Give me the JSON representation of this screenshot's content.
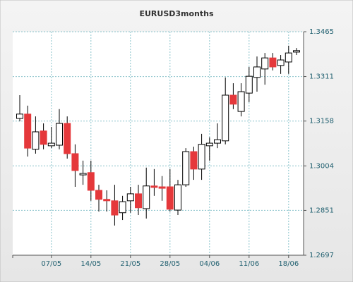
{
  "chart_data": {
    "type": "candlestick",
    "title": "EURUSD3months",
    "categories": [
      null,
      null,
      null,
      null,
      "07/05",
      null,
      null,
      null,
      null,
      "14/05",
      null,
      null,
      null,
      null,
      "21/05",
      null,
      null,
      null,
      null,
      "28/05",
      null,
      null,
      null,
      null,
      "04/06",
      null,
      null,
      null,
      null,
      "11/06",
      null,
      null,
      null,
      null,
      "18/06",
      null
    ],
    "open": [
      1.3167,
      1.3182,
      1.3061,
      1.3124,
      1.3073,
      1.3075,
      1.315,
      1.3046,
      1.2973,
      1.2981,
      1.292,
      1.2889,
      1.2884,
      1.2843,
      1.2884,
      1.2908,
      1.2857,
      1.2935,
      1.2932,
      1.2932,
      1.2852,
      1.2939,
      1.3053,
      1.2993,
      1.3073,
      1.3082,
      1.309,
      1.3247,
      1.3191,
      1.3254,
      1.3308,
      1.3337,
      1.3375,
      1.3349,
      1.3361,
      1.3395
    ],
    "high": [
      1.3247,
      1.3211,
      1.3174,
      1.315,
      1.3138,
      1.3199,
      1.3174,
      1.3078,
      1.3022,
      1.3022,
      1.2939,
      1.292,
      1.2939,
      1.2901,
      1.2932,
      1.2939,
      1.2998,
      1.2993,
      1.2969,
      1.2993,
      1.2956,
      1.3065,
      1.307,
      1.3114,
      1.3102,
      1.315,
      1.3308,
      1.3288,
      1.3288,
      1.3344,
      1.338,
      1.3392,
      1.3392,
      1.3385,
      1.3417,
      1.3409
    ],
    "low": [
      1.3157,
      1.3036,
      1.3046,
      1.3061,
      1.3065,
      1.3061,
      1.3029,
      1.2932,
      1.2939,
      1.2884,
      1.2847,
      1.2847,
      1.2799,
      1.2818,
      1.2843,
      1.2835,
      1.2823,
      1.2901,
      1.2884,
      1.2847,
      1.2835,
      1.2932,
      1.2956,
      1.2956,
      1.3022,
      1.3065,
      1.3078,
      1.3199,
      1.3174,
      1.3223,
      1.3259,
      1.3283,
      1.3332,
      1.332,
      1.332,
      1.3385
    ],
    "close": [
      1.3182,
      1.3065,
      1.3121,
      1.3078,
      1.3082,
      1.315,
      1.3046,
      1.2988,
      1.2978,
      1.292,
      1.2889,
      1.2884,
      1.2835,
      1.2881,
      1.2908,
      1.286,
      1.2935,
      1.293,
      1.2927,
      1.2855,
      1.2939,
      1.3053,
      1.2993,
      1.3078,
      1.3082,
      1.3094,
      1.3247,
      1.3216,
      1.3259,
      1.3312,
      1.3344,
      1.3375,
      1.3344,
      1.3368,
      1.3392,
      1.34
    ],
    "up_color": "#ffffff",
    "down_color": "#e5383b",
    "wick_color": "#000000",
    "ylim": [
      1.2697,
      1.3465
    ],
    "yticks": [
      1.2697,
      1.2851,
      1.3004,
      1.3158,
      1.3311,
      1.3465
    ],
    "grid": true
  }
}
